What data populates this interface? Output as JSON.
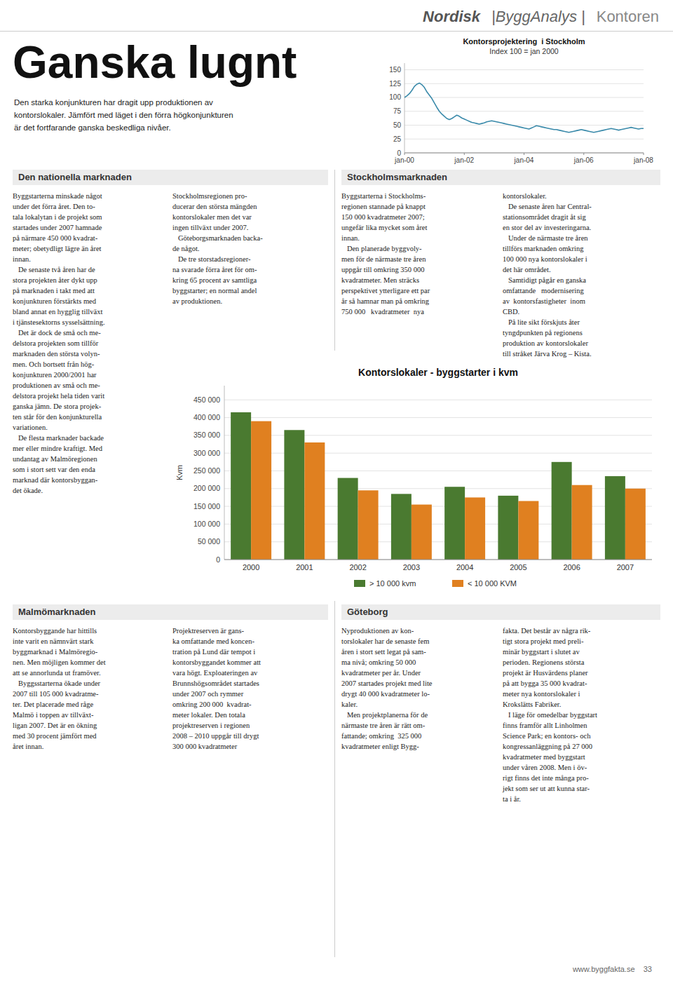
{
  "page": {
    "header": [
      "Nordisk",
      "|ByggAnalys |",
      "Kontoren"
    ],
    "title": "Ganska lugnt",
    "subtitle": "Den starka konjunkturen har dragit upp produktionen av\nkontorslokaler. Jämfört med läget i den förra högkonjunkturen\när det fortfarande ganska beskedliga nivåer.",
    "sections": [
      {
        "title": "Den nationella marknaden",
        "texts": [
          "Byggstarterna minskade något\nunder det förra året. Den to-\ntala lokalytan i de projekt som\nstartades under 2007 hamnade\npå närmare 450 000 kvadrat-\nmeter; obetydligt lägre än året\ninnan.\n   De senaste två åren har de\nstora projekten åter dykt upp\npå marknaden i takt med att\nkonjunkturen förstärkts med\nbland annat en hygglig tillväxt\ni tjänstesektorns sysselsättning.\n   Det är dock de små och me-\ndelstora projekten som tillför\nmarknaden den största volyn-\nmen. Och bortsett från hög-\nkonjunkturen 2000/2001 har\nproduktionen av små och me-\ndelstora projekt hela tiden varit\nganska jämn. De stora projek-\nten står för den konjunkturella\nvariationen.\n   De flesta marknader backade\nmer eller mindre kraftigt. Med\nundantag av Malmöregionen\nsom i stort sett var den enda\nmarknad där kontorsbyggan-\ndet ökade.",
          "Stockholmsregionen pro-\nducerar den största mängden\nkontorslokaler men det var\ningen tillväxt under 2007.\n   Göteborgsmarknaden backa-\nde något.\n   De tre storstadsregioner-\nna svarade förra året för om-\nkring 65 procent av samtliga\nbyggstarter; en normal andel\nav produktionen."
        ]
      },
      {
        "title": "Stockholmsmarknaden",
        "texts": [
          "Byggstarterna i Stockholms-\nregionen stannade på knappt\n150 000 kvadratmeter 2007;\nungefär lika mycket som året\ninnan.\n   Den planerade byggvoly-\nmen för de närmaste tre åren\nuppgår till omkring 350 000\nkvadratmeter. Men sträcks\nperspektivet ytterligare ett par\når så hamnar man på omkring\n750 000   kvadratmeter  nya",
          "kontorslokaler.\n   De senaste åren har Central-\nstationsområdet dragit åt sig\nen stor del av investeringarna.\n   Under de närmaste tre åren\ntillförs marknaden omkring\n100 000 nya kontorslokaler i\ndet här området.\n   Samtidigt pågår en ganska\nomfattande   modernisering\nav  kontorsfastigheter  inom\nCBD.\n   På lite sikt förskjuts åter\ntyngdpunkten på regionens\nproduktion av kontorslokaler\ntill stråket Järva Krog – Kista."
        ]
      },
      {
        "title": "Malmömarknaden",
        "texts": [
          "Kontorsbyggande har hittills\ninte varit en nämnvärt stark\nbyggmarknad i Malmöregio-\nnen. Men möjligen kommer det\natt se annorlunda ut framöver.\n   Byggsstarterna ökade under\n2007 till 105 000 kvadratme-\nter. Det placerade med råge\nMalmö i toppen av tillväxt-\nligan 2007. Det är en ökning\nmed 30 procent jämfört med\nåret innan.",
          "Projektreserven är gans-\nka omfattande med koncen-\ntration på Lund där tempot i\nkontorsbyggandet kommer att\nvara högt. Exploateringen av\nBrunnshögsområdet startades\nunder 2007 och rymmer\nomkring 200 000  kvadrat-\nmeter lokaler. Den totala\nprojektreserven i regionen\n2008 – 2010 uppgår till drygt\n300 000 kvadratmeter"
        ]
      },
      {
        "title": "Göteborg",
        "texts": [
          "Nyproduktionen av kon-\ntorslokaler har de senaste fem\nåren i stort sett legat på sam-\nma nivå; omkring 50 000\nkvadratmeter per år. Under\n2007 startades projekt med lite\ndrygt 40 000 kvadratmeter lo-\nkaler.\n   Men projektplanerna för de\nnärmaste tre åren är rätt om-\nfattande; omkring  325 000\nkvadratmeter enligt Bygg-",
          "fakta. Det består av några rik-\ntigt stora projekt med preli-\nminär byggstart i slutet av\nperioden. Regionens största\nprojekt är Husvärdens planer\npå att bygga 35 000 kvadrat-\nmeter nya kontorslokaler i\nKrokslätts Fabriker.\n   I läge för omedelbar byggstart\nfinns framför allt Linholmen\nScience Park; en kontors- och\nkongressanläggning på 27 000\nkvadratmeter med byggstart\nunder våren 2008. Men i öv-\nrigt finns det inte många pro-\njekt som ser ut att kunna star-\nta i år."
        ]
      }
    ],
    "footer": "www.byggfakta.se    33"
  },
  "chart_data": [
    {
      "type": "line",
      "title": "Kontorsprojektering  i Stockholm",
      "subtitle": "Index 100 = jan 2000",
      "categories": [
        "jan-00",
        null,
        null,
        null,
        null,
        null,
        null,
        null,
        null,
        null,
        null,
        null,
        null,
        null,
        null,
        null,
        null,
        null,
        null,
        null,
        null,
        null,
        null,
        null,
        "jan-02",
        null,
        null,
        null,
        null,
        null,
        null,
        null,
        null,
        null,
        null,
        null,
        null,
        null,
        null,
        null,
        null,
        null,
        null,
        null,
        null,
        null,
        null,
        null,
        "jan-04",
        null,
        null,
        null,
        null,
        null,
        null,
        null,
        null,
        null,
        null,
        null,
        null,
        null,
        null,
        null,
        null,
        null,
        null,
        null,
        null,
        null,
        null,
        null,
        "jan-06",
        null,
        null,
        null,
        null,
        null,
        null,
        null,
        null,
        null,
        null,
        null,
        null,
        null,
        null,
        null,
        null,
        null,
        null,
        null,
        null,
        null,
        null,
        null,
        "jan-08"
      ],
      "series": [
        {
          "color": "#3a8aaa",
          "values": [
            100,
            103,
            107,
            113,
            120,
            124,
            126,
            123,
            118,
            110,
            104,
            98,
            90,
            82,
            75,
            70,
            66,
            62,
            60,
            62,
            65,
            68,
            66,
            63,
            61,
            59,
            57,
            55,
            54,
            53,
            52,
            53,
            54,
            56,
            57,
            58,
            57,
            56,
            55,
            54,
            53,
            52,
            51,
            50,
            49,
            48,
            47,
            46,
            45,
            44,
            43,
            45,
            47,
            49,
            48,
            47,
            46,
            45,
            44,
            43,
            42,
            42,
            41,
            40,
            39,
            38,
            37,
            38,
            39,
            40,
            41,
            42,
            41,
            40,
            39,
            38,
            37,
            38,
            39,
            40,
            41,
            42,
            43,
            44,
            43,
            42,
            41,
            42,
            43,
            44,
            45,
            46,
            45,
            44,
            43,
            44,
            44
          ]
        }
      ],
      "ylim": [
        0,
        162
      ],
      "yticks": [
        0,
        25,
        50,
        75,
        100,
        125,
        150
      ],
      "grid": true
    },
    {
      "type": "bar",
      "title": "Kontorslokaler - byggstarter i kvm",
      "ylabel": "Kvm",
      "categories": [
        "2000",
        "2001",
        "2002",
        "2003",
        "2004",
        "2005",
        "2006",
        "2007"
      ],
      "series": [
        {
          "name": "> 10 000 kvm",
          "color": "#4a7a30",
          "values": [
            415000,
            365000,
            230000,
            185000,
            205000,
            180000,
            275000,
            235000
          ]
        },
        {
          "name": "< 10 000 KVM",
          "color": "#e08020",
          "values": [
            390000,
            330000,
            195000,
            155000,
            175000,
            165000,
            210000,
            200000
          ]
        }
      ],
      "ylim": [
        0,
        490000
      ],
      "yticks": [
        0,
        {
          "value": 50000,
          "label": "50 000"
        },
        {
          "value": 100000,
          "label": "100 000"
        },
        {
          "value": 150000,
          "label": "150 000"
        },
        {
          "value": 200000,
          "label": "200 000"
        },
        {
          "value": 250000,
          "label": "250 000"
        },
        {
          "value": 300000,
          "label": "300 000"
        },
        {
          "value": 350000,
          "label": "350 000"
        },
        {
          "value": 400000,
          "label": "400 000"
        },
        {
          "value": 450000,
          "label": "450 000"
        }
      ],
      "grid": true,
      "legend": "bottom"
    }
  ]
}
